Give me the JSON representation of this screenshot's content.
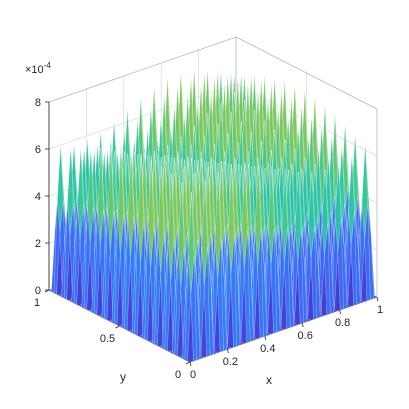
{
  "chart_data": {
    "type": "surface",
    "xlabel": "x",
    "ylabel": "y",
    "zlabel": "",
    "title": "",
    "x_range": [
      0,
      1
    ],
    "y_range": [
      0,
      1
    ],
    "z_range": [
      0,
      0.0008
    ],
    "z_scale_label": "×10",
    "z_scale_exponent": "-4",
    "x_ticks": [
      "0",
      "0.2",
      "0.4",
      "0.6",
      "0.8",
      "1"
    ],
    "y_ticks": [
      "0",
      "0.5",
      "1"
    ],
    "z_ticks": [
      "0",
      "2",
      "4",
      "6",
      "8"
    ],
    "surface": {
      "description_of_function": "peaks ~7.5e-4 along ridges",
      "ridges_x": 14,
      "ridges_y": 14,
      "peak_z": 0.00075
    },
    "colormap": "parula",
    "grid": "on"
  }
}
